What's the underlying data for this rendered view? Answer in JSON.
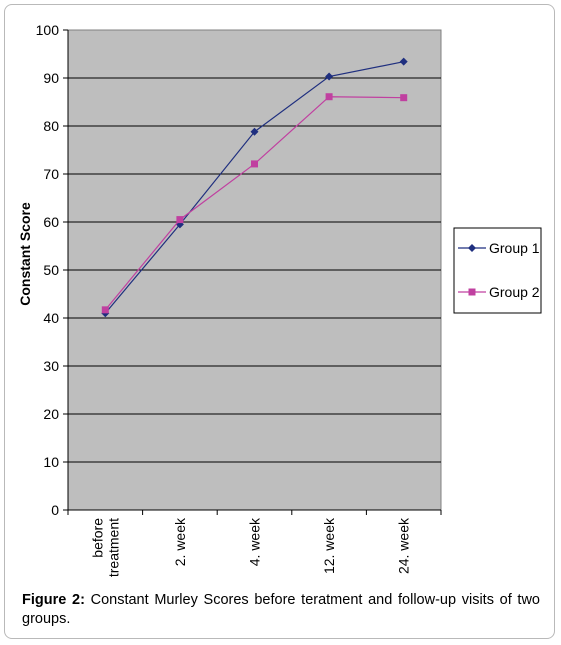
{
  "caption": {
    "label": "Figure 2:",
    "text": "Constant Murley Scores before teratment and follow-up visits of two groups."
  },
  "chart_data": {
    "type": "line",
    "title": "",
    "xlabel": "",
    "ylabel": "Constant Score",
    "ylim": [
      0,
      100
    ],
    "yticks": [
      0,
      10,
      20,
      30,
      40,
      50,
      60,
      70,
      80,
      90,
      100
    ],
    "grid": true,
    "legend_position": "right",
    "categories": [
      [
        "before",
        "treatment"
      ],
      [
        "2. week"
      ],
      [
        "4. week"
      ],
      [
        "12. week"
      ],
      [
        "24. week"
      ]
    ],
    "series": [
      {
        "name": "Group 1",
        "values": [
          41,
          59.5,
          78.8,
          90.3,
          93.4
        ],
        "color": "#1f2f7f",
        "marker": "diamond"
      },
      {
        "name": "Group 2",
        "values": [
          41.7,
          60.5,
          72.1,
          86.1,
          85.9
        ],
        "color": "#c040a0",
        "marker": "square"
      }
    ],
    "plot_background": "#bebebe"
  }
}
